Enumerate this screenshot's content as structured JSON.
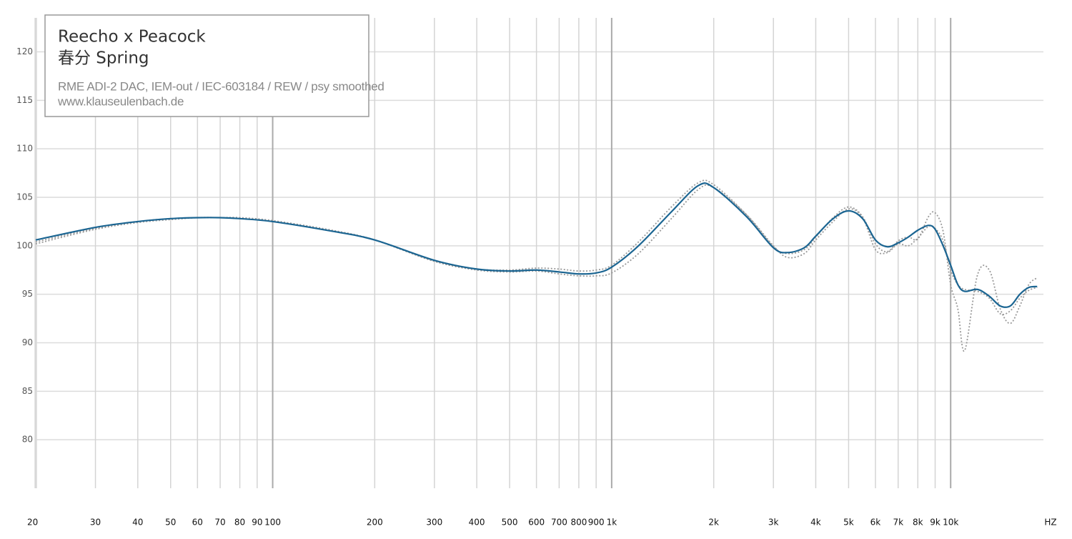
{
  "chart_data": {
    "type": "line",
    "title": "Reecho x Peacock",
    "subtitle": "春分 Spring",
    "annotations": [
      "RME ADI-2 DAC, IEM-out / IEC-603184 / REW / psy smoothed",
      "www.klauseulenbach.de"
    ],
    "x_label": "HZ",
    "x": [
      20,
      30,
      40,
      50,
      60,
      70,
      80,
      100,
      150,
      200,
      300,
      400,
      500,
      600,
      700,
      800,
      900,
      1000,
      1200,
      1500,
      1800,
      2000,
      2500,
      3000,
      3300,
      3700,
      4000,
      4500,
      5000,
      5500,
      6000,
      6500,
      7000,
      7500,
      8000,
      8600,
      9000,
      9500,
      10000,
      10500,
      11000,
      12000,
      13000,
      14000,
      15000,
      16000,
      17000,
      18000
    ],
    "series": [
      {
        "color": "#999999",
        "values": [
          100.2,
          101.7,
          102.4,
          102.7,
          102.9,
          102.9,
          102.9,
          102.6,
          101.6,
          100.6,
          98.4,
          97.6,
          97.5,
          97.7,
          97.6,
          97.4,
          97.5,
          98.0,
          100.4,
          104.0,
          106.5,
          106.3,
          103.2,
          99.9,
          99.2,
          99.6,
          100.9,
          102.9,
          104.0,
          103.0,
          100.2,
          99.4,
          100.5,
          100.9,
          100.7,
          103.0,
          103.4,
          101.5,
          96.0,
          93.5,
          89.2,
          97.0,
          97.5,
          93.5,
          92.0,
          93.8,
          96.0,
          96.7
        ]
      },
      {
        "color": "#999999",
        "values": [
          100.4,
          101.8,
          102.5,
          102.8,
          102.9,
          102.9,
          102.8,
          102.5,
          101.5,
          100.6,
          98.4,
          97.5,
          97.3,
          97.4,
          97.1,
          96.9,
          96.9,
          97.2,
          99.2,
          102.8,
          105.8,
          106.0,
          103.2,
          100.0,
          98.8,
          99.2,
          100.6,
          102.5,
          103.8,
          102.9,
          99.6,
          99.3,
          100.2,
          100.0,
          100.8,
          102.0,
          101.8,
          100.5,
          97.5,
          96.0,
          95.5,
          95.3,
          94.6,
          93.0,
          93.3,
          94.6,
          95.4,
          95.7
        ]
      },
      {
        "color": "#1b6592",
        "values": [
          100.6,
          101.9,
          102.5,
          102.8,
          102.9,
          102.9,
          102.8,
          102.5,
          101.5,
          100.6,
          98.5,
          97.6,
          97.4,
          97.5,
          97.3,
          97.1,
          97.2,
          97.8,
          100.0,
          103.5,
          106.2,
          106.0,
          103.0,
          99.8,
          99.3,
          99.8,
          101.0,
          102.8,
          103.6,
          102.8,
          100.6,
          99.9,
          100.3,
          100.9,
          101.6,
          102.1,
          101.7,
          100.0,
          98.0,
          96.0,
          95.3,
          95.5,
          94.8,
          93.8,
          93.8,
          95.0,
          95.7,
          95.8
        ]
      }
    ],
    "log_x": true,
    "xlim": [
      20,
      20000
    ],
    "ylim": [
      75,
      123.5
    ],
    "xticks": [
      20,
      30,
      40,
      50,
      60,
      70,
      80,
      90,
      100,
      200,
      300,
      400,
      500,
      600,
      700,
      800,
      900,
      {
        "value": 1000,
        "label": "1k"
      },
      {
        "value": 2000,
        "label": "2k"
      },
      {
        "value": 3000,
        "label": "3k"
      },
      {
        "value": 4000,
        "label": "4k"
      },
      {
        "value": 5000,
        "label": "5k"
      },
      {
        "value": 6000,
        "label": "6k"
      },
      {
        "value": 7000,
        "label": "7k"
      },
      {
        "value": 8000,
        "label": "8k"
      },
      {
        "value": 9000,
        "label": "9k"
      },
      {
        "value": 10000,
        "label": "10k"
      }
    ],
    "yticks": [
      80,
      85,
      90,
      95,
      100,
      105,
      110,
      115,
      120
    ],
    "grid": true
  }
}
